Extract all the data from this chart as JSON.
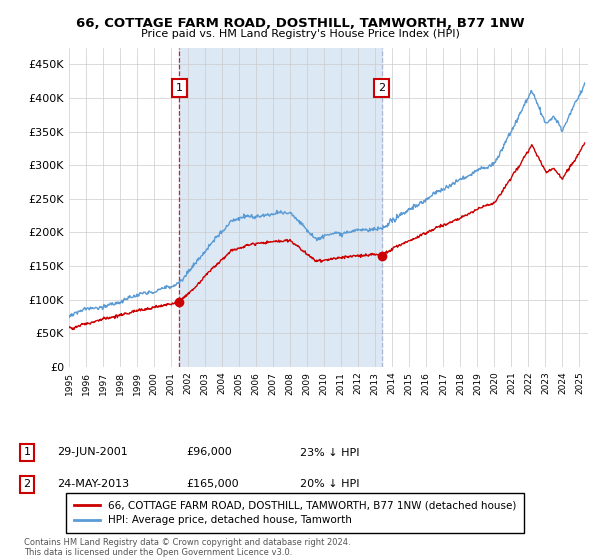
{
  "title": "66, COTTAGE FARM ROAD, DOSTHILL, TAMWORTH, B77 1NW",
  "subtitle": "Price paid vs. HM Land Registry's House Price Index (HPI)",
  "legend_line1": "66, COTTAGE FARM ROAD, DOSTHILL, TAMWORTH, B77 1NW (detached house)",
  "legend_line2": "HPI: Average price, detached house, Tamworth",
  "annotation1_date": "29-JUN-2001",
  "annotation1_price": "£96,000",
  "annotation1_hpi": "23% ↓ HPI",
  "annotation2_date": "24-MAY-2013",
  "annotation2_price": "£165,000",
  "annotation2_hpi": "20% ↓ HPI",
  "footer": "Contains HM Land Registry data © Crown copyright and database right 2024.\nThis data is licensed under the Open Government Licence v3.0.",
  "ylim": [
    0,
    475000
  ],
  "yticks": [
    0,
    50000,
    100000,
    150000,
    200000,
    250000,
    300000,
    350000,
    400000,
    450000
  ],
  "ytick_labels": [
    "£0",
    "£50K",
    "£100K",
    "£150K",
    "£200K",
    "£250K",
    "£300K",
    "£350K",
    "£400K",
    "£450K"
  ],
  "hpi_color": "#5b9bd5",
  "sale_color": "#cc0000",
  "vline1_color": "#cc0000",
  "vline2_color": "#aaaacc",
  "shade_color": "#dce9f5",
  "background_color": "#ffffff",
  "grid_color": "#cccccc",
  "sale1_x": 2001.49,
  "sale1_y": 96000,
  "sale2_x": 2013.39,
  "sale2_y": 165000,
  "xmin": 1995,
  "xmax": 2025.5,
  "annot_box_color": "#cc0000"
}
